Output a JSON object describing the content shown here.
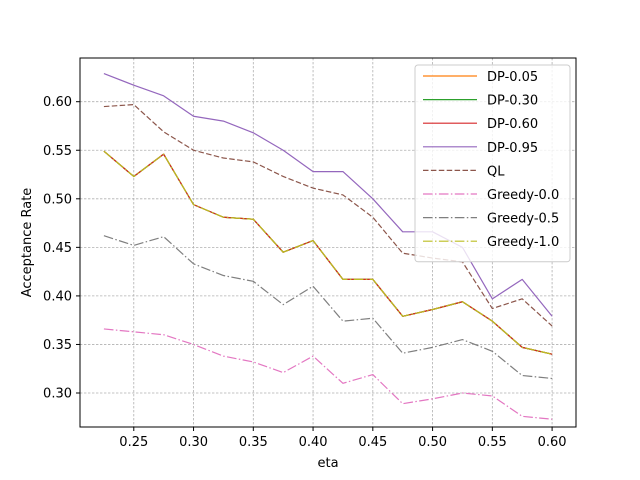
{
  "chart_data": {
    "type": "line",
    "title": "",
    "xlabel": "eta",
    "ylabel": "Acceptance Rate",
    "xlim": [
      0.205,
      0.62
    ],
    "ylim": [
      0.265,
      0.645
    ],
    "grid": true,
    "legend_position": "top-right",
    "x": [
      0.225,
      0.25,
      0.275,
      0.3,
      0.325,
      0.35,
      0.375,
      0.4,
      0.425,
      0.45,
      0.475,
      0.5,
      0.525,
      0.55,
      0.575,
      0.6
    ],
    "x_ticks": [
      {
        "value": 0.25,
        "label": "0.25"
      },
      {
        "value": 0.3,
        "label": "0.30"
      },
      {
        "value": 0.35,
        "label": "0.35"
      },
      {
        "value": 0.4,
        "label": "0.40"
      },
      {
        "value": 0.45,
        "label": "0.45"
      },
      {
        "value": 0.5,
        "label": "0.50"
      },
      {
        "value": 0.55,
        "label": "0.55"
      },
      {
        "value": 0.6,
        "label": "0.60"
      }
    ],
    "y_ticks": [
      {
        "value": 0.3,
        "label": "0.30"
      },
      {
        "value": 0.35,
        "label": "0.35"
      },
      {
        "value": 0.4,
        "label": "0.40"
      },
      {
        "value": 0.45,
        "label": "0.45"
      },
      {
        "value": 0.5,
        "label": "0.50"
      },
      {
        "value": 0.55,
        "label": "0.55"
      },
      {
        "value": 0.6,
        "label": "0.60"
      }
    ],
    "series": [
      {
        "name": "DP-0.05",
        "color": "#ff7f0e",
        "dash": "solid",
        "values": [
          0.549,
          0.523,
          0.546,
          0.494,
          0.481,
          0.479,
          0.445,
          0.457,
          0.417,
          0.417,
          0.379,
          0.386,
          0.394,
          0.374,
          0.347,
          0.34
        ]
      },
      {
        "name": "DP-0.30",
        "color": "#2ca02c",
        "dash": "solid",
        "values": [
          0.549,
          0.523,
          0.546,
          0.494,
          0.481,
          0.479,
          0.445,
          0.457,
          0.417,
          0.417,
          0.379,
          0.386,
          0.394,
          0.374,
          0.347,
          0.34
        ]
      },
      {
        "name": "DP-0.60",
        "color": "#d62728",
        "dash": "solid",
        "values": [
          0.549,
          0.523,
          0.546,
          0.494,
          0.481,
          0.479,
          0.445,
          0.457,
          0.417,
          0.417,
          0.379,
          0.386,
          0.394,
          0.374,
          0.347,
          0.34
        ]
      },
      {
        "name": "DP-0.95",
        "color": "#9467bd",
        "dash": "solid",
        "values": [
          0.629,
          0.617,
          0.606,
          0.585,
          0.58,
          0.568,
          0.55,
          0.528,
          0.528,
          0.5,
          0.466,
          0.466,
          0.45,
          0.397,
          0.417,
          0.379
        ]
      },
      {
        "name": "QL",
        "color": "#8c564b",
        "dash": "dashed",
        "values": [
          0.595,
          0.597,
          0.569,
          0.55,
          0.542,
          0.538,
          0.523,
          0.511,
          0.504,
          0.481,
          0.444,
          0.439,
          0.435,
          0.387,
          0.397,
          0.369
        ]
      },
      {
        "name": "Greedy-0.0",
        "color": "#e377c2",
        "dash": "dashdot",
        "values": [
          0.366,
          0.363,
          0.36,
          0.35,
          0.338,
          0.332,
          0.321,
          0.338,
          0.31,
          0.319,
          0.289,
          0.294,
          0.3,
          0.297,
          0.276,
          0.273
        ]
      },
      {
        "name": "Greedy-0.5",
        "color": "#7f7f7f",
        "dash": "dashdot",
        "values": [
          0.462,
          0.452,
          0.461,
          0.433,
          0.421,
          0.415,
          0.391,
          0.41,
          0.374,
          0.377,
          0.341,
          0.347,
          0.355,
          0.343,
          0.318,
          0.315
        ]
      },
      {
        "name": "Greedy-1.0",
        "color": "#bcbd22",
        "dash": "dashdot",
        "values": [
          0.549,
          0.523,
          0.546,
          0.494,
          0.481,
          0.479,
          0.445,
          0.457,
          0.417,
          0.417,
          0.379,
          0.386,
          0.394,
          0.374,
          0.347,
          0.34
        ]
      }
    ]
  }
}
